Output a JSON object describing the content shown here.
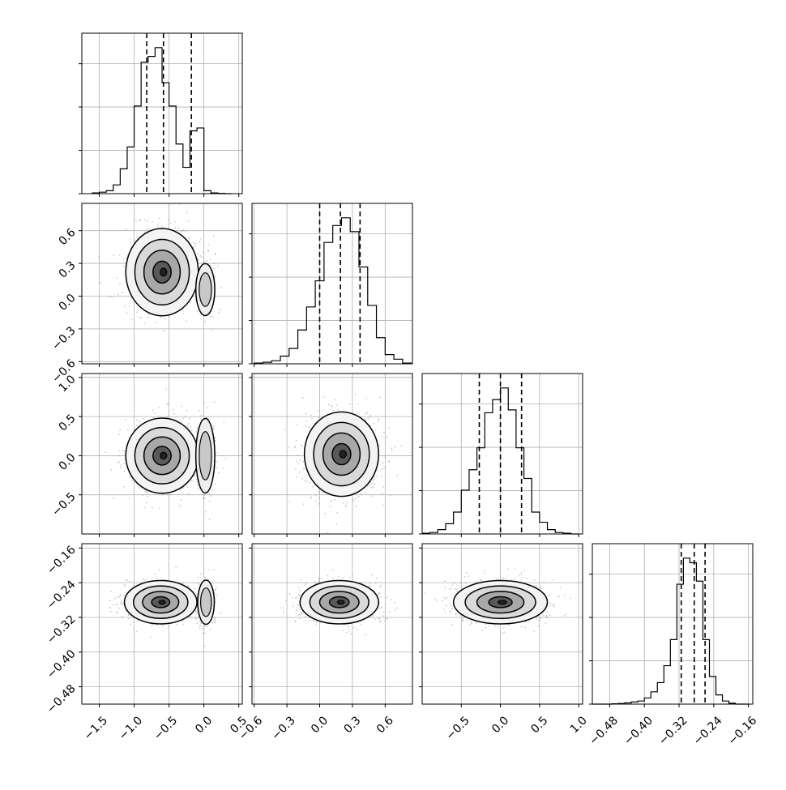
{
  "chart_data": {
    "type": "corner",
    "parameters": [
      {
        "range": [
          -1.75,
          0.55
        ],
        "ticks": [
          -1.5,
          -1.0,
          -0.5,
          0.0,
          0.5
        ],
        "tick_labels": [
          "−1.5",
          "−1.0",
          "−0.5",
          "0.0",
          "0.5"
        ]
      },
      {
        "range": [
          -0.62,
          0.85
        ],
        "ticks": [
          -0.6,
          -0.3,
          0.0,
          0.3,
          0.6
        ],
        "tick_labels": [
          "−0.6",
          "−0.3",
          "0.0",
          "0.3",
          "0.6"
        ]
      },
      {
        "range": [
          -1.0,
          1.05
        ],
        "ticks": [
          -0.5,
          0.0,
          0.5,
          1.0
        ],
        "tick_labels": [
          "−0.5",
          "0.0",
          "0.5",
          "1.0"
        ]
      },
      {
        "range": [
          -0.52,
          -0.15
        ],
        "ticks": [
          -0.48,
          -0.4,
          -0.32,
          -0.24,
          -0.16
        ],
        "tick_labels": [
          "−0.48",
          "−0.40",
          "−0.32",
          "−0.24",
          "−0.16"
        ]
      }
    ],
    "quantiles": [
      [
        -0.82,
        -0.58,
        -0.18
      ],
      [
        0.0,
        0.19,
        0.37
      ],
      [
        -0.27,
        0.0,
        0.27
      ],
      [
        -0.315,
        -0.285,
        -0.26
      ]
    ],
    "histograms": [
      {
        "bins": [
          -1.6,
          -1.5,
          -1.4,
          -1.3,
          -1.2,
          -1.1,
          -1.0,
          -0.9,
          -0.8,
          -0.7,
          -0.6,
          -0.5,
          -0.4,
          -0.3,
          -0.2,
          -0.1,
          0.0,
          0.1,
          0.2,
          0.3,
          0.4
        ],
        "counts": [
          0.005,
          0.01,
          0.02,
          0.06,
          0.17,
          0.32,
          0.6,
          0.9,
          0.94,
          1.0,
          0.76,
          0.6,
          0.34,
          0.18,
          0.43,
          0.45,
          0.02,
          0.005,
          0.002,
          0.0
        ]
      },
      {
        "bins": [
          -0.6,
          -0.52,
          -0.44,
          -0.36,
          -0.28,
          -0.2,
          -0.12,
          -0.04,
          0.04,
          0.12,
          0.2,
          0.28,
          0.36,
          0.44,
          0.52,
          0.6,
          0.68,
          0.76,
          0.84
        ],
        "counts": [
          0.005,
          0.01,
          0.02,
          0.05,
          0.1,
          0.22,
          0.37,
          0.54,
          0.79,
          0.9,
          0.95,
          0.86,
          0.63,
          0.38,
          0.17,
          0.06,
          0.03,
          0.005
        ]
      },
      {
        "bins": [
          -1.0,
          -0.9,
          -0.8,
          -0.7,
          -0.6,
          -0.5,
          -0.4,
          -0.3,
          -0.2,
          -0.1,
          0.0,
          0.1,
          0.2,
          0.3,
          0.4,
          0.5,
          0.6,
          0.7,
          0.8,
          0.9,
          1.0
        ],
        "counts": [
          0.005,
          0.01,
          0.03,
          0.07,
          0.15,
          0.3,
          0.44,
          0.59,
          0.83,
          0.92,
          1.0,
          0.85,
          0.59,
          0.38,
          0.15,
          0.08,
          0.03,
          0.01,
          0.005,
          0.0
        ]
      },
      {
        "bins": [
          -0.52,
          -0.505,
          -0.49,
          -0.475,
          -0.46,
          -0.445,
          -0.43,
          -0.415,
          -0.4,
          -0.385,
          -0.37,
          -0.355,
          -0.34,
          -0.325,
          -0.31,
          -0.295,
          -0.28,
          -0.265,
          -0.25,
          -0.235,
          -0.22,
          -0.205,
          -0.19,
          -0.175,
          -0.16
        ],
        "counts": [
          0.0,
          0.0,
          0.0,
          0.002,
          0.004,
          0.008,
          0.014,
          0.02,
          0.04,
          0.08,
          0.14,
          0.25,
          0.42,
          0.78,
          0.95,
          0.92,
          0.8,
          0.42,
          0.18,
          0.06,
          0.02,
          0.006,
          0.0,
          0.0
        ]
      }
    ],
    "pairs": [
      {
        "row": 1,
        "col": 0,
        "center": [
          -0.6,
          0.22
        ],
        "spread": [
          0.26,
          0.2
        ],
        "second_center": [
          0.02,
          0.06
        ],
        "second_spread": [
          0.08,
          0.14
        ]
      },
      {
        "row": 2,
        "col": 0,
        "center": [
          -0.6,
          0.0
        ],
        "spread": [
          0.26,
          0.24
        ],
        "second_center": [
          0.02,
          0.0
        ],
        "second_spread": [
          0.08,
          0.28
        ]
      },
      {
        "row": 2,
        "col": 1,
        "center": [
          0.2,
          0.02
        ],
        "spread": [
          0.17,
          0.27
        ]
      },
      {
        "row": 3,
        "col": 0,
        "center": [
          -0.62,
          -0.285
        ],
        "spread": [
          0.26,
          0.025
        ],
        "second_center": [
          0.03,
          -0.285
        ],
        "second_spread": [
          0.07,
          0.03
        ]
      },
      {
        "row": 3,
        "col": 1,
        "center": [
          0.18,
          -0.285
        ],
        "spread": [
          0.18,
          0.025
        ]
      },
      {
        "row": 3,
        "col": 2,
        "center": [
          0.0,
          -0.285
        ],
        "spread": [
          0.3,
          0.025
        ]
      }
    ],
    "grid": true,
    "xlabel": "",
    "ylabel": "",
    "title": ""
  }
}
